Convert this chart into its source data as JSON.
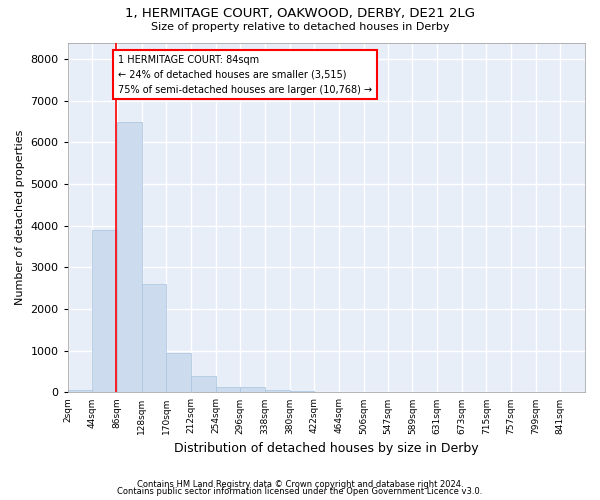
{
  "title": "1, HERMITAGE COURT, OAKWOOD, DERBY, DE21 2LG",
  "subtitle": "Size of property relative to detached houses in Derby",
  "xlabel": "Distribution of detached houses by size in Derby",
  "ylabel": "Number of detached properties",
  "bar_color": "#ccdcee",
  "bar_edge_color": "#a8c4de",
  "background_color": "#e8eef8",
  "grid_color": "#ffffff",
  "annotation_text_line1": "1 HERMITAGE COURT: 84sqm",
  "annotation_text_line2": "← 24% of detached houses are smaller (3,515)",
  "annotation_text_line3": "75% of semi-detached houses are larger (10,768) →",
  "footer_line1": "Contains HM Land Registry data © Crown copyright and database right 2024.",
  "footer_line2": "Contains public sector information licensed under the Open Government Licence v3.0.",
  "bin_labels": [
    "2sqm",
    "44sqm",
    "86sqm",
    "128sqm",
    "170sqm",
    "212sqm",
    "254sqm",
    "296sqm",
    "338sqm",
    "380sqm",
    "422sqm",
    "464sqm",
    "506sqm",
    "547sqm",
    "589sqm",
    "631sqm",
    "673sqm",
    "715sqm",
    "757sqm",
    "799sqm",
    "841sqm"
  ],
  "bin_values": [
    2,
    44,
    86,
    128,
    170,
    212,
    254,
    296,
    338,
    380,
    422,
    464,
    506,
    547,
    589,
    631,
    673,
    715,
    757,
    799,
    841
  ],
  "bar_heights": [
    55,
    3900,
    6500,
    2600,
    950,
    400,
    130,
    130,
    70,
    30,
    10,
    5,
    2,
    2,
    1,
    1,
    0,
    0,
    0,
    0
  ],
  "red_line_x": 84,
  "ylim": [
    0,
    8400
  ],
  "yticks": [
    0,
    1000,
    2000,
    3000,
    4000,
    5000,
    6000,
    7000,
    8000
  ]
}
